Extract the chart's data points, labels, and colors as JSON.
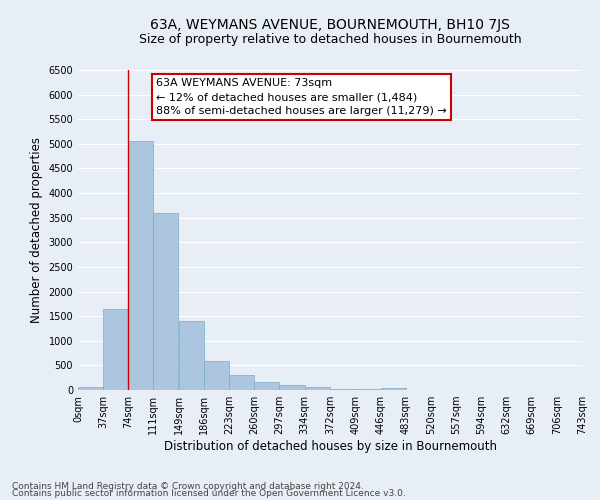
{
  "title": "63A, WEYMANS AVENUE, BOURNEMOUTH, BH10 7JS",
  "subtitle": "Size of property relative to detached houses in Bournemouth",
  "xlabel": "Distribution of detached houses by size in Bournemouth",
  "ylabel": "Number of detached properties",
  "bin_labels": [
    "0sqm",
    "37sqm",
    "74sqm",
    "111sqm",
    "149sqm",
    "186sqm",
    "223sqm",
    "260sqm",
    "297sqm",
    "334sqm",
    "372sqm",
    "409sqm",
    "446sqm",
    "483sqm",
    "520sqm",
    "557sqm",
    "594sqm",
    "632sqm",
    "669sqm",
    "706sqm",
    "743sqm"
  ],
  "bar_heights": [
    70,
    1640,
    5060,
    3600,
    1400,
    590,
    305,
    155,
    105,
    55,
    25,
    15,
    50,
    0,
    0,
    0,
    0,
    0,
    0,
    0
  ],
  "bar_color": "#adc6df",
  "bar_edge_color": "#7aaac8",
  "property_line_x": 73,
  "property_line_color": "#cc0000",
  "annotation_line1": "63A WEYMANS AVENUE: 73sqm",
  "annotation_line2": "← 12% of detached houses are smaller (1,484)",
  "annotation_line3": "88% of semi-detached houses are larger (11,279) →",
  "annotation_box_color": "#ffffff",
  "annotation_box_edge_color": "#cc0000",
  "ylim": [
    0,
    6500
  ],
  "xlim_right": 743,
  "bin_width": 37,
  "footer_line1": "Contains HM Land Registry data © Crown copyright and database right 2024.",
  "footer_line2": "Contains public sector information licensed under the Open Government Licence v3.0.",
  "bg_color": "#e8eef5",
  "plot_bg_color": "#e8eef5",
  "grid_color": "#ffffff",
  "title_fontsize": 10,
  "subtitle_fontsize": 9,
  "axis_label_fontsize": 8.5,
  "tick_fontsize": 7,
  "annotation_fontsize": 8,
  "footer_fontsize": 6.5,
  "yticks": [
    0,
    500,
    1000,
    1500,
    2000,
    2500,
    3000,
    3500,
    4000,
    4500,
    5000,
    5500,
    6000,
    6500
  ]
}
